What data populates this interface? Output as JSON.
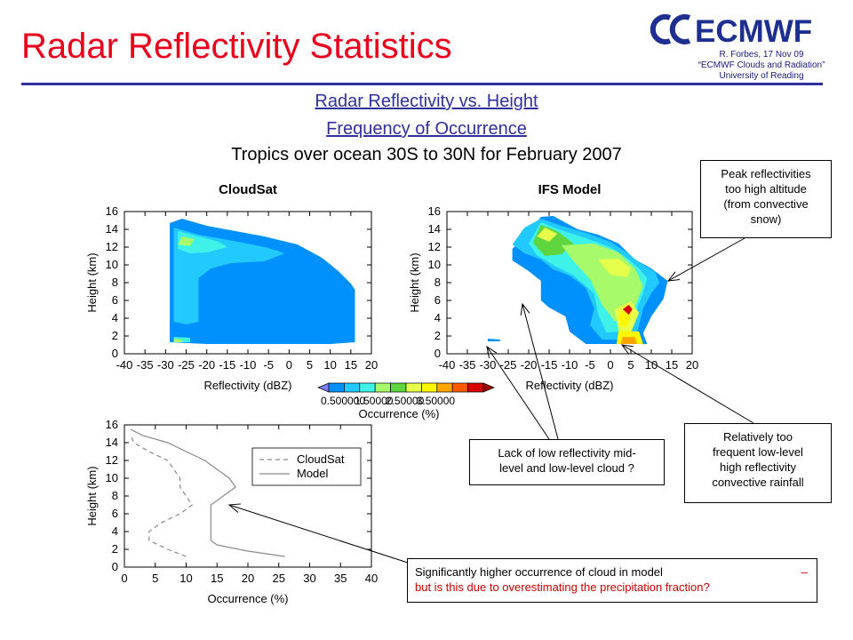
{
  "header": {
    "title": "Radar Reflectivity Statistics",
    "logo_text": "ECMWF",
    "credit": [
      "R. Forbes, 17 Nov 09",
      "“ECMWF Clouds and Radiation”",
      "University of Reading"
    ],
    "subtitle_1": "Radar Reflectivity vs. Height",
    "subtitle_2": "Frequency of Occurrence",
    "subtitle_3": "Tropics over ocean 30S to 30N for February 2007"
  },
  "colors": {
    "title": "#e8001c",
    "rule": "#2f2fa0",
    "logo": "#1f2f8f",
    "levels": [
      "#7d7dff",
      "#0091ff",
      "#21c9ff",
      "#3ff2e8",
      "#a7fb6a",
      "#5fd63f",
      "#e5ff4b",
      "#fff700",
      "#ffa500",
      "#ff5a00",
      "#d90000",
      "#a00000"
    ]
  },
  "annotations": {
    "peak": [
      "Peak reflectivities",
      "too high altitude",
      "(from convective",
      "snow)"
    ],
    "low_level": [
      "Relatively too",
      "frequent low-level",
      "high reflectivity",
      "convective rainfall"
    ],
    "lack": [
      "Lack of low reflectivity mid-",
      "level and low-level cloud ?"
    ],
    "significant_1": "Significantly higher occurrence of cloud in model",
    "significant_dash": "–",
    "significant_2": "but is this due to overestimating the precipitation fraction?"
  },
  "chart_data": [
    {
      "type": "heatmap",
      "title": "CloudSat",
      "xlabel": "Reflectivity (dBZ)",
      "ylabel": "Height (km)",
      "xlim": [
        -40,
        20
      ],
      "ylim": [
        0,
        16
      ],
      "xticks": [
        "-40",
        "-35",
        "-30",
        "-25",
        "-20",
        "-15",
        "-10",
        "-5",
        "0",
        "5",
        "10",
        "15",
        "20"
      ],
      "yticks": [
        "0",
        "2",
        "4",
        "6",
        "8",
        "10",
        "12",
        "14",
        "16"
      ]
    },
    {
      "type": "heatmap",
      "title": "IFS Model",
      "xlabel": "Reflectivity (dBZ)",
      "ylabel": "Height (km)",
      "xlim": [
        -40,
        20
      ],
      "ylim": [
        0,
        16
      ],
      "xticks": [
        "-40",
        "-35",
        "-30",
        "-25",
        "-20",
        "-15",
        "-10",
        "-5",
        "0",
        "5",
        "10",
        "15",
        "20"
      ],
      "yticks": [
        "0",
        "2",
        "4",
        "6",
        "8",
        "10",
        "12",
        "14",
        "16"
      ]
    },
    {
      "type": "colorbar",
      "label": "Occurrence (%)",
      "ticks": [
        "0.500000",
        "1.50000",
        "2.50000",
        "3.50000"
      ]
    },
    {
      "type": "line",
      "xlabel": "Occurrence (%)",
      "ylabel": "Height (km)",
      "xlim": [
        0,
        40
      ],
      "ylim": [
        0,
        16
      ],
      "xticks": [
        "0",
        "5",
        "10",
        "15",
        "20",
        "25",
        "30",
        "35",
        "40"
      ],
      "yticks": [
        "0",
        "2",
        "4",
        "6",
        "8",
        "10",
        "12",
        "14",
        "16"
      ],
      "series": [
        {
          "name": "CloudSat",
          "dash": true,
          "points": [
            [
              10,
              1.2
            ],
            [
              7,
              2
            ],
            [
              4,
              3
            ],
            [
              4,
              4
            ],
            [
              6,
              5
            ],
            [
              9,
              6
            ],
            [
              11,
              7
            ],
            [
              10,
              8
            ],
            [
              9,
              9
            ],
            [
              9,
              10
            ],
            [
              8,
              11
            ],
            [
              7,
              12
            ],
            [
              4,
              13
            ],
            [
              1.5,
              14
            ],
            [
              1,
              15
            ]
          ]
        },
        {
          "name": "Model",
          "dash": false,
          "points": [
            [
              26,
              1.2
            ],
            [
              20,
              1.8
            ],
            [
              15,
              2.5
            ],
            [
              14,
              3
            ],
            [
              14,
              4
            ],
            [
              14,
              5
            ],
            [
              14,
              6
            ],
            [
              14,
              7
            ],
            [
              16,
              8
            ],
            [
              18,
              9
            ],
            [
              17,
              10
            ],
            [
              15,
              11
            ],
            [
              13,
              12
            ],
            [
              10,
              13
            ],
            [
              7,
              14
            ],
            [
              3,
              14.8
            ],
            [
              1,
              15.5
            ]
          ]
        }
      ]
    }
  ]
}
